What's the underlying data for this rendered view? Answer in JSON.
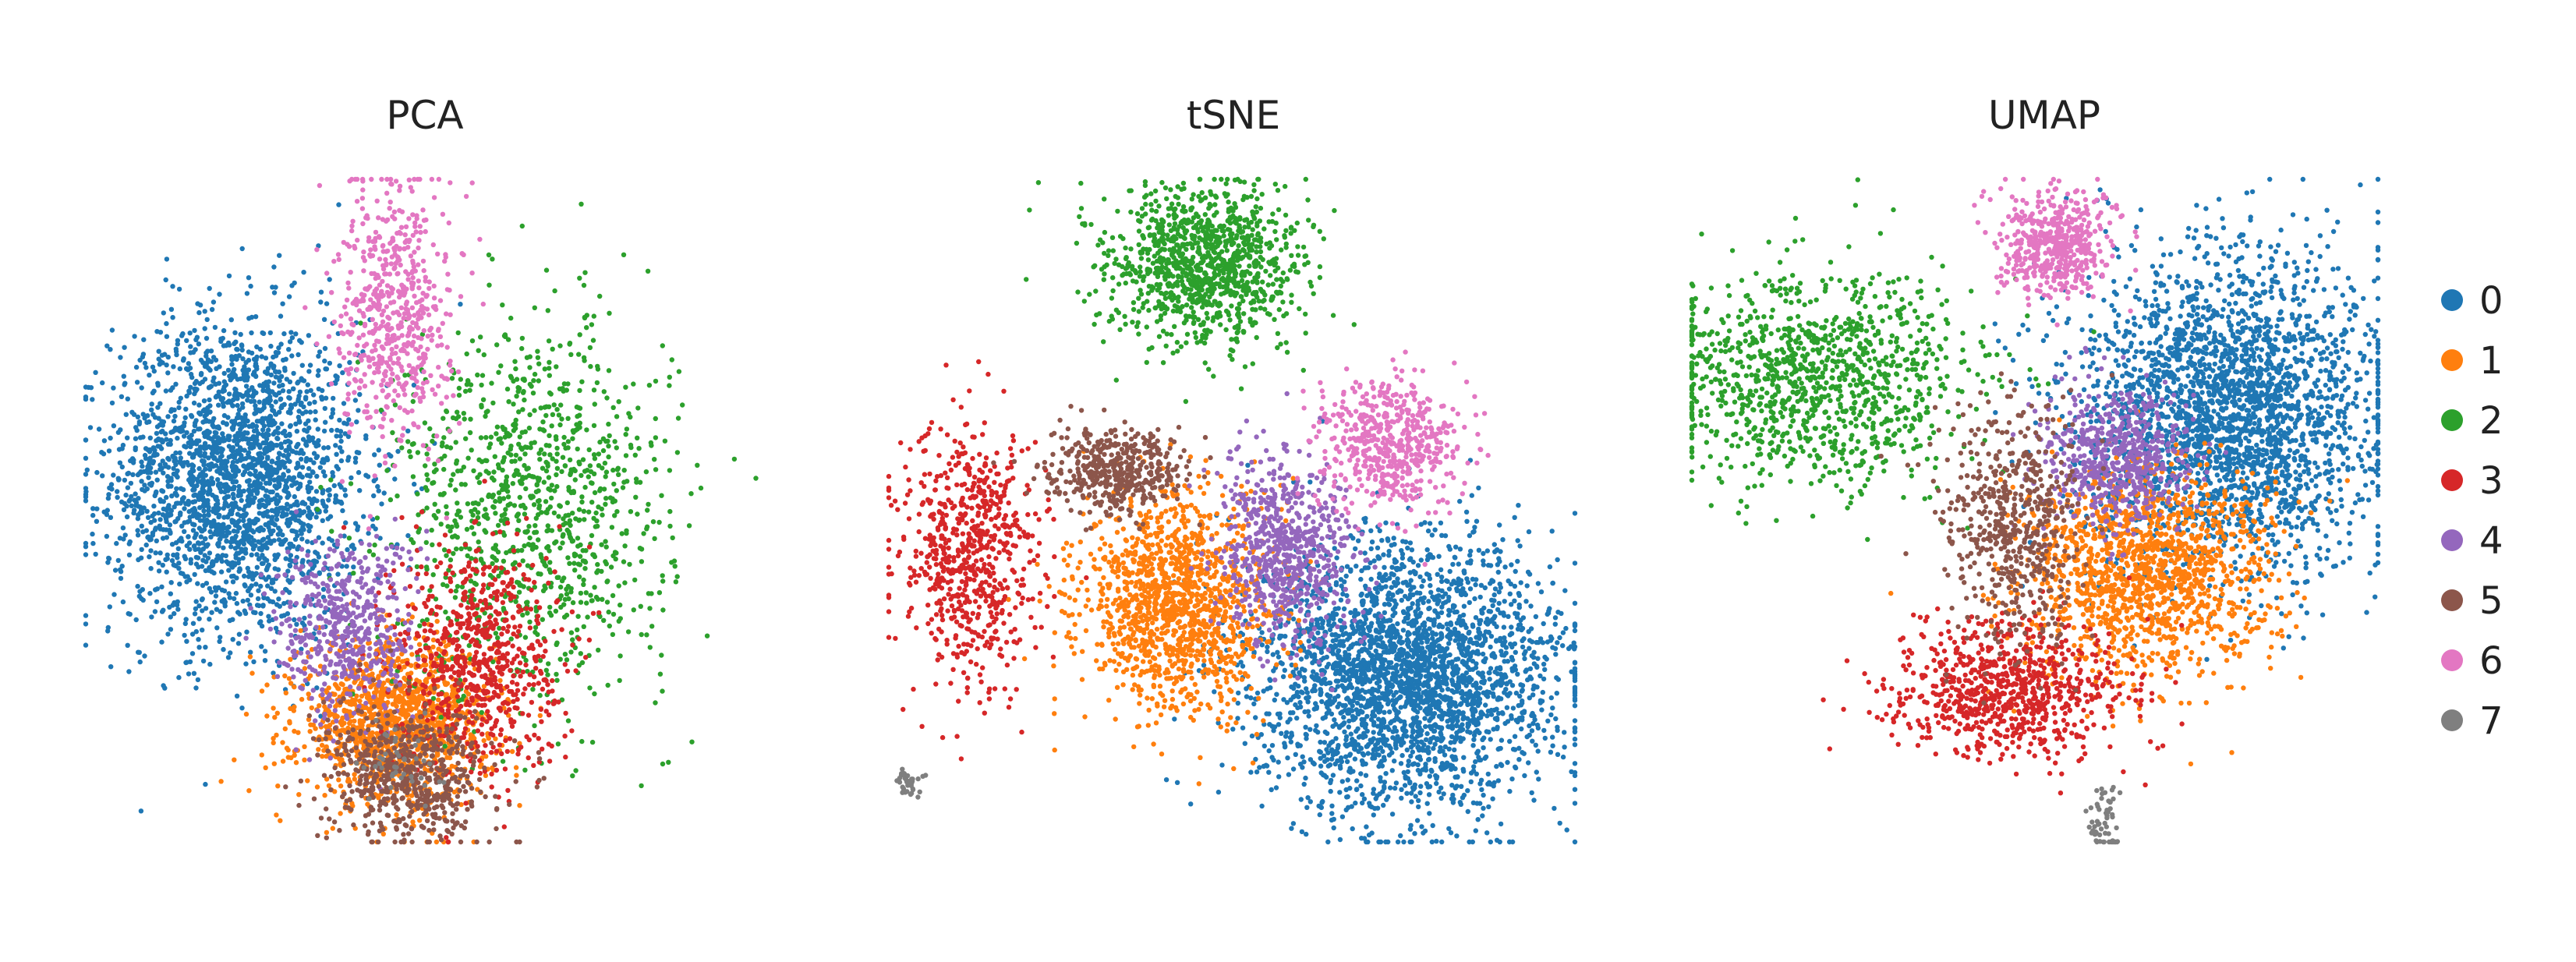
{
  "figure": {
    "legend_position": "right",
    "legend": [
      {
        "label": "0",
        "color": "#1f77b4"
      },
      {
        "label": "1",
        "color": "#ff7f0e"
      },
      {
        "label": "2",
        "color": "#2ca02c"
      },
      {
        "label": "3",
        "color": "#d62728"
      },
      {
        "label": "4",
        "color": "#9467bd"
      },
      {
        "label": "5",
        "color": "#8c564b"
      },
      {
        "label": "6",
        "color": "#e377c2"
      },
      {
        "label": "7",
        "color": "#7f7f7f"
      }
    ]
  },
  "chart_data": [
    {
      "type": "scatter",
      "title": "PCA",
      "xlabel": "",
      "ylabel": "",
      "axes_visible": false,
      "grid": false,
      "xlim": [
        0,
        100
      ],
      "ylim": [
        0,
        100
      ],
      "clusters": [
        {
          "name": "0",
          "center": [
            22,
            55
          ],
          "spread": [
            9,
            12
          ],
          "n": 2400
        },
        {
          "name": "1",
          "center": [
            45,
            18
          ],
          "spread": [
            7,
            6
          ],
          "n": 1300
        },
        {
          "name": "2",
          "center": [
            65,
            50
          ],
          "spread": [
            10,
            14
          ],
          "n": 1100
        },
        {
          "name": "3",
          "center": [
            57,
            28
          ],
          "spread": [
            6,
            9
          ],
          "n": 700
        },
        {
          "name": "4",
          "center": [
            38,
            32
          ],
          "spread": [
            5,
            7
          ],
          "n": 500
        },
        {
          "name": "5",
          "center": [
            47,
            10
          ],
          "spread": [
            6,
            5
          ],
          "n": 600
        },
        {
          "name": "6",
          "center": [
            45,
            80
          ],
          "spread": [
            4,
            10
          ],
          "n": 600
        },
        {
          "name": "7",
          "center": [
            46,
            12
          ],
          "spread": [
            3,
            3
          ],
          "n": 40
        }
      ]
    },
    {
      "type": "scatter",
      "title": "tSNE",
      "xlabel": "",
      "ylabel": "",
      "axes_visible": false,
      "grid": false,
      "xlim": [
        0,
        100
      ],
      "ylim": [
        0,
        100
      ],
      "clusters": [
        {
          "name": "0",
          "center": [
            76,
            25
          ],
          "spread": [
            11,
            10
          ],
          "n": 2800
        },
        {
          "name": "1",
          "center": [
            42,
            36
          ],
          "spread": [
            7,
            8
          ],
          "n": 1300
        },
        {
          "name": "2",
          "center": [
            46,
            87
          ],
          "spread": [
            7,
            6
          ],
          "n": 1100
        },
        {
          "name": "3",
          "center": [
            12,
            43
          ],
          "spread": [
            5,
            10
          ],
          "n": 700
        },
        {
          "name": "4",
          "center": [
            58,
            44
          ],
          "spread": [
            5,
            7
          ],
          "n": 700
        },
        {
          "name": "5",
          "center": [
            33,
            56
          ],
          "spread": [
            5,
            3
          ],
          "n": 450
        },
        {
          "name": "6",
          "center": [
            73,
            60
          ],
          "spread": [
            5,
            5
          ],
          "n": 550
        },
        {
          "name": "7",
          "center": [
            3,
            9
          ],
          "spread": [
            1,
            1
          ],
          "n": 40
        }
      ]
    },
    {
      "type": "scatter",
      "title": "UMAP",
      "xlabel": "",
      "ylabel": "",
      "axes_visible": false,
      "grid": false,
      "xlim": [
        0,
        100
      ],
      "ylim": [
        0,
        100
      ],
      "clusters": [
        {
          "name": "0",
          "center": [
            78,
            65
          ],
          "spread": [
            11,
            12
          ],
          "n": 2600
        },
        {
          "name": "1",
          "center": [
            66,
            40
          ],
          "spread": [
            9,
            8
          ],
          "n": 1400
        },
        {
          "name": "2",
          "center": [
            18,
            70
          ],
          "spread": [
            11,
            8
          ],
          "n": 1100
        },
        {
          "name": "3",
          "center": [
            46,
            23
          ],
          "spread": [
            9,
            5
          ],
          "n": 800
        },
        {
          "name": "4",
          "center": [
            62,
            58
          ],
          "spread": [
            5,
            5
          ],
          "n": 600
        },
        {
          "name": "5",
          "center": [
            47,
            48
          ],
          "spread": [
            5,
            9
          ],
          "n": 550
        },
        {
          "name": "6",
          "center": [
            53,
            90
          ],
          "spread": [
            4,
            4
          ],
          "n": 500
        },
        {
          "name": "7",
          "center": [
            60,
            3
          ],
          "spread": [
            1.5,
            3
          ],
          "n": 60
        }
      ]
    }
  ]
}
